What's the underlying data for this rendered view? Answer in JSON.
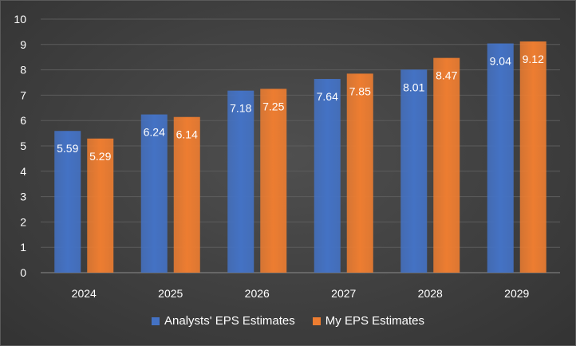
{
  "chart_data": {
    "type": "bar",
    "title": "",
    "xlabel": "",
    "ylabel": "",
    "categories": [
      "2024",
      "2025",
      "2026",
      "2027",
      "2028",
      "2029"
    ],
    "series": [
      {
        "name": "Analysts' EPS Estimates",
        "color": "#4472c4",
        "values": [
          5.59,
          6.24,
          7.18,
          7.64,
          8.01,
          9.04
        ],
        "labels": [
          "5.59",
          "6.24",
          "7.18",
          "7.64",
          "8.01",
          "9.04"
        ]
      },
      {
        "name": "My EPS Estimates",
        "color": "#ed7d31",
        "values": [
          5.29,
          6.14,
          7.25,
          7.85,
          8.47,
          9.12
        ],
        "labels": [
          "5.29",
          "6.14",
          "7.25",
          "7.85",
          "8.47",
          "9.12"
        ]
      }
    ],
    "ylim": [
      0,
      10
    ],
    "yticks": [
      "0",
      "1",
      "2",
      "3",
      "4",
      "5",
      "6",
      "7",
      "8",
      "9",
      "10"
    ],
    "grid": true,
    "legend_position": "bottom"
  }
}
